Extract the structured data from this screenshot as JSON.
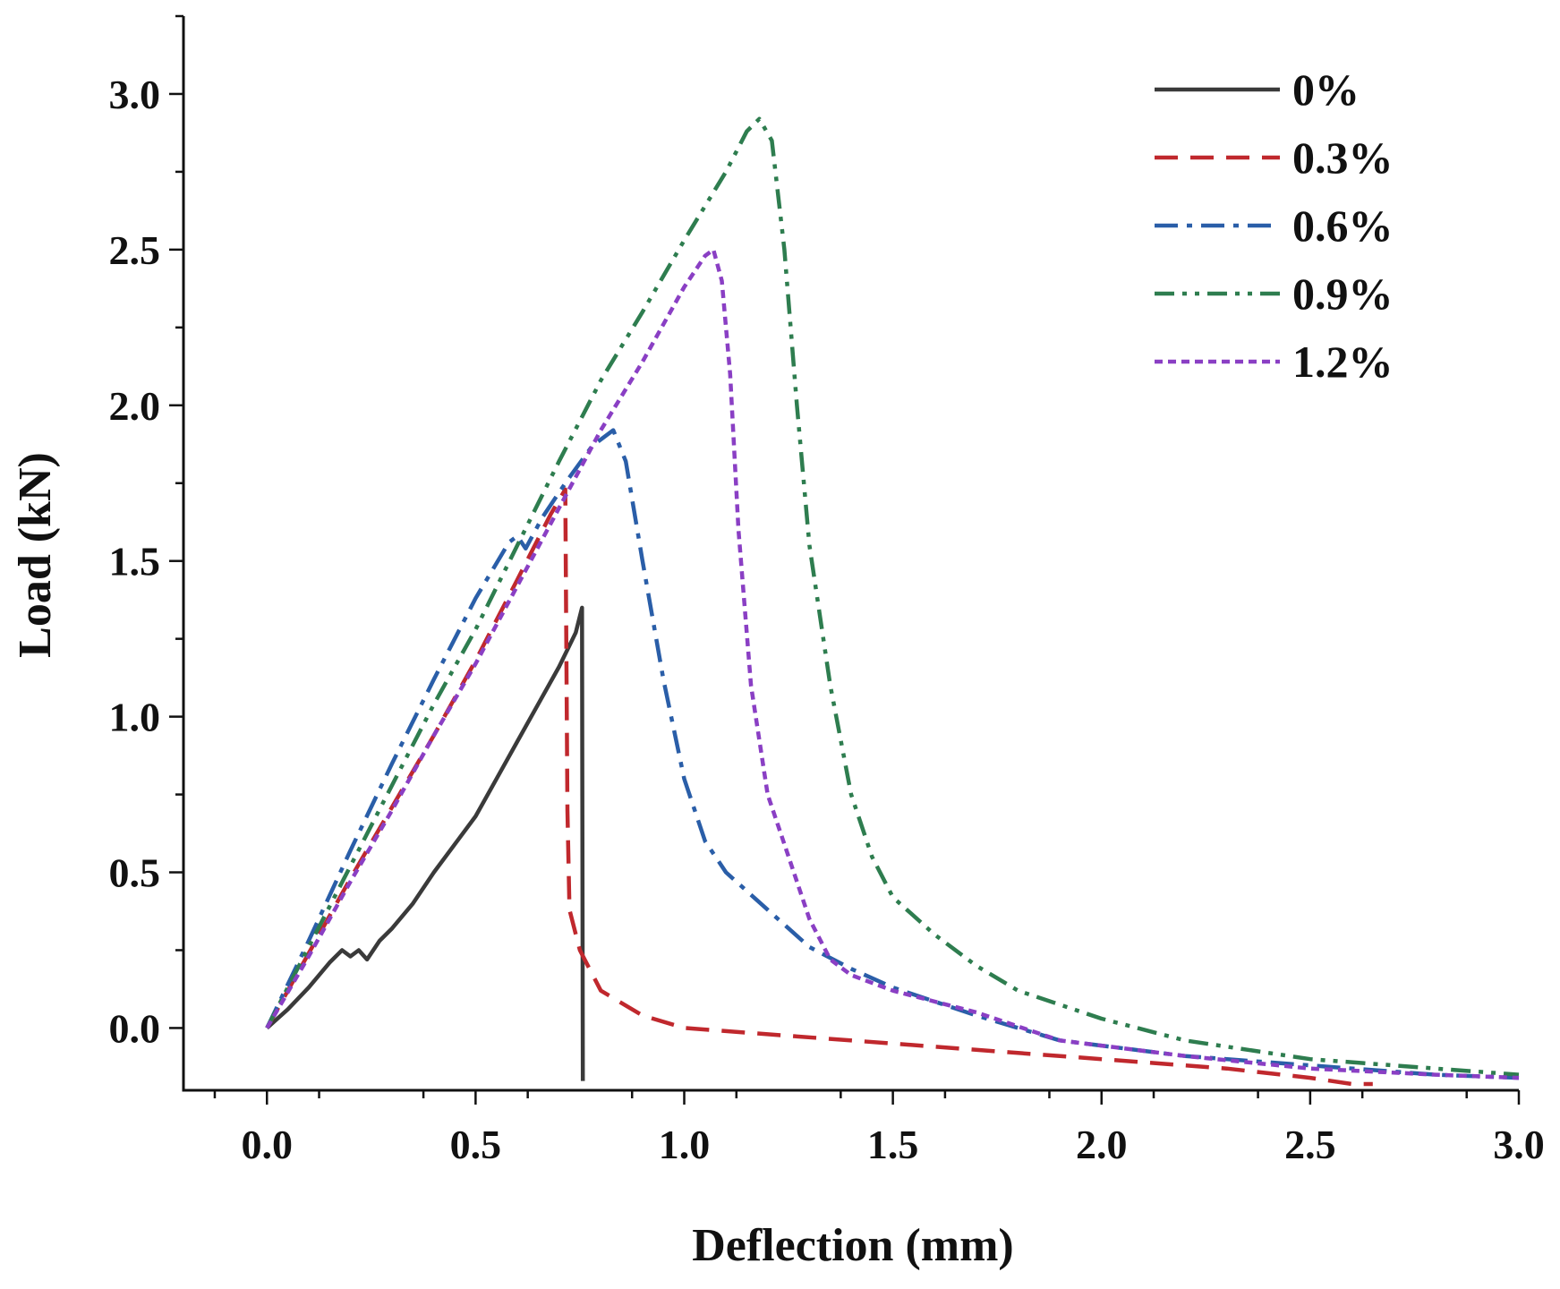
{
  "chart_data": {
    "type": "line",
    "xlabel": "Deflection (mm)",
    "ylabel": "Load (kN)",
    "xlim": [
      -0.2,
      3.0
    ],
    "ylim": [
      -0.2,
      3.25
    ],
    "xticks": [
      "0.0",
      "0.5",
      "1.0",
      "1.5",
      "2.0",
      "2.5",
      "3.0"
    ],
    "yticks": [
      "0.0",
      "0.5",
      "1.0",
      "1.5",
      "2.0",
      "2.5",
      "3.0"
    ],
    "grid": false,
    "legend_position": "top-right",
    "series": [
      {
        "name": "0%",
        "color": "#3a3a3a",
        "dash": "solid",
        "points": [
          [
            0,
            0
          ],
          [
            0.05,
            0.06
          ],
          [
            0.1,
            0.13
          ],
          [
            0.15,
            0.21
          ],
          [
            0.18,
            0.25
          ],
          [
            0.2,
            0.23
          ],
          [
            0.22,
            0.25
          ],
          [
            0.24,
            0.22
          ],
          [
            0.27,
            0.28
          ],
          [
            0.3,
            0.32
          ],
          [
            0.35,
            0.4
          ],
          [
            0.4,
            0.5
          ],
          [
            0.45,
            0.59
          ],
          [
            0.5,
            0.68
          ],
          [
            0.55,
            0.8
          ],
          [
            0.6,
            0.92
          ],
          [
            0.65,
            1.04
          ],
          [
            0.7,
            1.16
          ],
          [
            0.74,
            1.27
          ],
          [
            0.755,
            1.35
          ],
          [
            0.757,
            -0.17
          ]
        ]
      },
      {
        "name": "0.3%",
        "color": "#c0282d",
        "dash": "dashed",
        "points": [
          [
            0,
            0
          ],
          [
            0.1,
            0.24
          ],
          [
            0.2,
            0.48
          ],
          [
            0.3,
            0.71
          ],
          [
            0.4,
            0.94
          ],
          [
            0.5,
            1.18
          ],
          [
            0.6,
            1.44
          ],
          [
            0.68,
            1.65
          ],
          [
            0.715,
            1.73
          ],
          [
            0.717,
            1.3
          ],
          [
            0.72,
            0.7
          ],
          [
            0.725,
            0.38
          ],
          [
            0.75,
            0.25
          ],
          [
            0.8,
            0.12
          ],
          [
            0.9,
            0.04
          ],
          [
            1.0,
            0.0
          ],
          [
            1.2,
            -0.02
          ],
          [
            1.5,
            -0.05
          ],
          [
            1.8,
            -0.08
          ],
          [
            2.0,
            -0.1
          ],
          [
            2.3,
            -0.13
          ],
          [
            2.5,
            -0.16
          ],
          [
            2.6,
            -0.18
          ],
          [
            2.65,
            -0.18
          ]
        ]
      },
      {
        "name": "0.6%",
        "color": "#2a5ea8",
        "dash": "dashdot",
        "points": [
          [
            0,
            0
          ],
          [
            0.1,
            0.28
          ],
          [
            0.2,
            0.57
          ],
          [
            0.3,
            0.85
          ],
          [
            0.4,
            1.12
          ],
          [
            0.5,
            1.38
          ],
          [
            0.58,
            1.56
          ],
          [
            0.6,
            1.58
          ],
          [
            0.62,
            1.54
          ],
          [
            0.66,
            1.64
          ],
          [
            0.72,
            1.76
          ],
          [
            0.78,
            1.87
          ],
          [
            0.83,
            1.92
          ],
          [
            0.86,
            1.82
          ],
          [
            0.9,
            1.5
          ],
          [
            0.95,
            1.12
          ],
          [
            1.0,
            0.8
          ],
          [
            1.05,
            0.6
          ],
          [
            1.1,
            0.5
          ],
          [
            1.2,
            0.38
          ],
          [
            1.3,
            0.26
          ],
          [
            1.4,
            0.19
          ],
          [
            1.5,
            0.13
          ],
          [
            1.7,
            0.04
          ],
          [
            1.9,
            -0.04
          ],
          [
            2.2,
            -0.09
          ],
          [
            2.5,
            -0.12
          ],
          [
            2.8,
            -0.15
          ],
          [
            3.0,
            -0.16
          ]
        ]
      },
      {
        "name": "0.9%",
        "color": "#2e7d4f",
        "dash": "dashdotdot",
        "points": [
          [
            0,
            0
          ],
          [
            0.1,
            0.26
          ],
          [
            0.2,
            0.52
          ],
          [
            0.3,
            0.78
          ],
          [
            0.4,
            1.04
          ],
          [
            0.5,
            1.28
          ],
          [
            0.6,
            1.55
          ],
          [
            0.7,
            1.82
          ],
          [
            0.8,
            2.08
          ],
          [
            0.9,
            2.3
          ],
          [
            1.0,
            2.53
          ],
          [
            1.1,
            2.75
          ],
          [
            1.15,
            2.88
          ],
          [
            1.18,
            2.92
          ],
          [
            1.21,
            2.85
          ],
          [
            1.24,
            2.5
          ],
          [
            1.27,
            2.0
          ],
          [
            1.3,
            1.55
          ],
          [
            1.35,
            1.1
          ],
          [
            1.4,
            0.75
          ],
          [
            1.45,
            0.55
          ],
          [
            1.5,
            0.42
          ],
          [
            1.6,
            0.3
          ],
          [
            1.7,
            0.2
          ],
          [
            1.8,
            0.12
          ],
          [
            2.0,
            0.03
          ],
          [
            2.2,
            -0.04
          ],
          [
            2.5,
            -0.1
          ],
          [
            2.8,
            -0.13
          ],
          [
            3.0,
            -0.15
          ]
        ]
      },
      {
        "name": "1.2%",
        "color": "#8a3fc4",
        "dash": "dotted",
        "points": [
          [
            0,
            0
          ],
          [
            0.1,
            0.23
          ],
          [
            0.2,
            0.47
          ],
          [
            0.3,
            0.7
          ],
          [
            0.4,
            0.94
          ],
          [
            0.5,
            1.17
          ],
          [
            0.6,
            1.42
          ],
          [
            0.7,
            1.67
          ],
          [
            0.8,
            1.92
          ],
          [
            0.9,
            2.14
          ],
          [
            1.0,
            2.38
          ],
          [
            1.05,
            2.48
          ],
          [
            1.07,
            2.5
          ],
          [
            1.09,
            2.4
          ],
          [
            1.11,
            2.1
          ],
          [
            1.13,
            1.6
          ],
          [
            1.16,
            1.1
          ],
          [
            1.2,
            0.75
          ],
          [
            1.25,
            0.55
          ],
          [
            1.3,
            0.35
          ],
          [
            1.35,
            0.22
          ],
          [
            1.4,
            0.17
          ],
          [
            1.5,
            0.12
          ],
          [
            1.7,
            0.05
          ],
          [
            1.9,
            -0.04
          ],
          [
            2.2,
            -0.09
          ],
          [
            2.5,
            -0.13
          ],
          [
            2.8,
            -0.15
          ],
          [
            3.0,
            -0.16
          ]
        ]
      }
    ]
  }
}
